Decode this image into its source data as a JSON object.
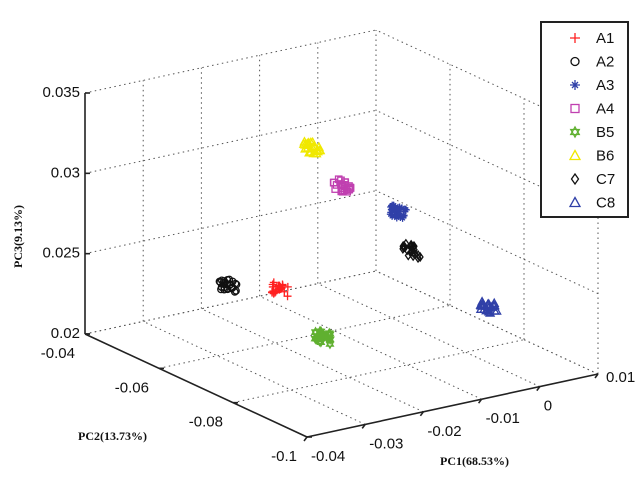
{
  "chart_data": {
    "type": "scatter",
    "projection": "3d",
    "grid": true,
    "legend_position": "top-right",
    "xlabel": "PC1(68.53%)",
    "ylabel": "PC2(13.73%)",
    "zlabel": "PC3(9.13%)",
    "xlim": [
      -0.04,
      0.01
    ],
    "ylim": [
      -0.1,
      -0.04
    ],
    "zlim": [
      0.02,
      0.035
    ],
    "xticks": [
      -0.04,
      -0.03,
      -0.02,
      -0.01,
      0,
      0.01
    ],
    "xtick_labels": [
      "-0.04",
      "-0.03",
      "-0.02",
      "-0.01",
      "0",
      "0.01"
    ],
    "yticks": [
      -0.1,
      -0.08,
      -0.06,
      -0.04
    ],
    "ytick_labels": [
      "-0.1",
      "-0.08",
      "-0.06",
      "-0.04"
    ],
    "zticks": [
      0.02,
      0.025,
      0.03,
      0.035
    ],
    "ztick_labels": [
      "0.02",
      "0.025",
      "0.03",
      "0.035"
    ],
    "series": [
      {
        "name": "A1",
        "marker": "plus",
        "color": "#ff2020",
        "center": [
          -0.018,
          -0.058,
          0.023
        ]
      },
      {
        "name": "A2",
        "marker": "circle",
        "color": "#111111",
        "center": [
          -0.023,
          -0.052,
          0.023
        ]
      },
      {
        "name": "A3",
        "marker": "star",
        "color": "#3040a8",
        "center": [
          -0.005,
          -0.07,
          0.028
        ]
      },
      {
        "name": "A4",
        "marker": "square",
        "color": "#c040b0",
        "center": [
          -0.013,
          -0.067,
          0.03
        ]
      },
      {
        "name": "B5",
        "marker": "hexagram",
        "color": "#60b030",
        "center": [
          -0.015,
          -0.065,
          0.0205
        ]
      },
      {
        "name": "B6",
        "marker": "triangle",
        "color": "#f0e800",
        "center": [
          -0.015,
          -0.062,
          0.032
        ]
      },
      {
        "name": "C7",
        "marker": "diamond",
        "color": "#111111",
        "center": [
          -0.001,
          -0.067,
          0.025
        ]
      },
      {
        "name": "C8",
        "marker": "triangle",
        "color": "#3040a8",
        "center": [
          0.006,
          -0.077,
          0.022
        ]
      }
    ]
  }
}
